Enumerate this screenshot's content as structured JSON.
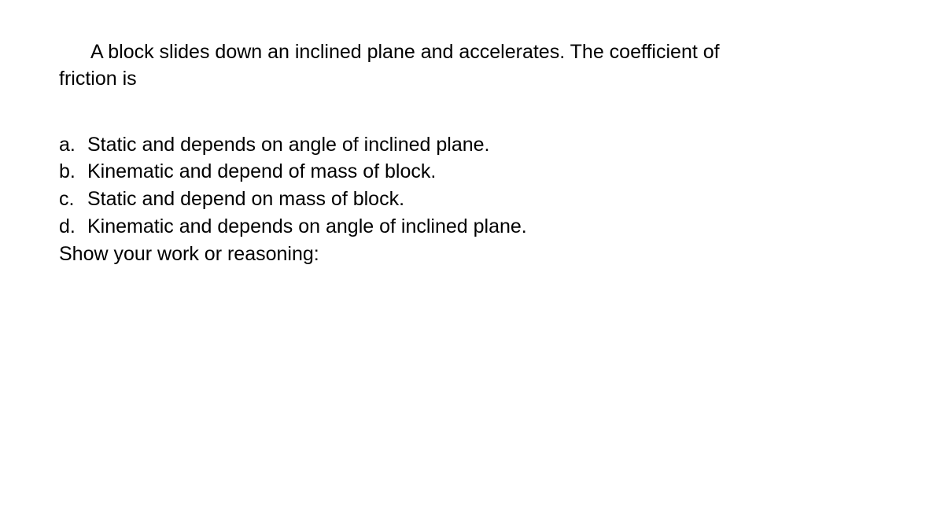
{
  "document": {
    "question_line1_indent": "A block slides down an inclined plane and accelerates. The coefficient of",
    "question_line2": "friction is",
    "options": [
      {
        "marker": "a.",
        "text": "Static and depends on angle of inclined plane."
      },
      {
        "marker": "b.",
        "text": "Kinematic and depend of mass of block."
      },
      {
        "marker": "c.",
        "text": "Static and depend on mass of block."
      },
      {
        "marker": "d.",
        "text": "Kinematic and depends on angle of inclined plane."
      }
    ],
    "reasoning_label": "Show your work or reasoning:",
    "text_color": "#000000",
    "background_color": "#ffffff",
    "font_size_pt": 19,
    "font_family": "Arial"
  }
}
